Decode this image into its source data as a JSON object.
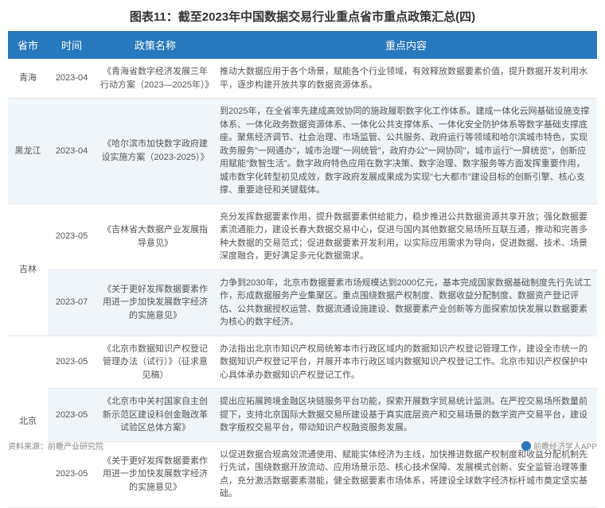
{
  "title": "图表11：截至2023年中国数据交易行业重点省市重点政策汇总(四)",
  "header": {
    "province": "省市",
    "time": "时间",
    "policy": "政策名称",
    "content": "重点内容"
  },
  "rows": [
    {
      "province": "青海",
      "time": "2023-04",
      "policy": "《青海省数字经济发展三年行动方案（2023—2025年）》",
      "content": "推动大数据应用于各个场景，赋能各个行业领域，有效释放数据要素价值，提升数据开发利用水平，逐步构建开放共享的数据资源体系。",
      "alt": false
    },
    {
      "province": "黑龙江",
      "time": "2023-04",
      "policy": "《哈尔滨市加快数字政府建设实施方案（2023-2025）》",
      "content": "到2025年，在全省率先建成高效协同的施政履职数字化工作体系。建成一体化云网基础设施支撑体系、一体化政务数据资源体系、一体化公共支撑体系、一体化安全防护体系等数字基础支撑底座。聚焦经济调节、社会治理、市场监管、公共服务、政府运行等领域和哈尔滨城市特色，实现政务服务\"一网通办\"，城市治理\"一网统管\"，政府办公\"一网协同\"，城市运行\"一屏统览\"，创新应用赋能\"数智生活\"。数字政府特色应用在数字决策、数字治理、数字服务等方面发挥重要作用，城市数字化转型初见成效，数字政府发展成果成为实现\"七大都市\"建设目标的创新引擎、核心支撑、重要途径和关键载体。",
      "alt": true
    },
    {
      "province": "吉林",
      "time": "2023-05",
      "policy": "《吉林省大数据产业发展指导意见》",
      "content": "充分发挥数据要素作用，提升数据要素供给能力，稳步推进公共数据资源共享开放；强化数据要素流通能力，建设长春大数据交易中心，促进与国内其他数据交易场所互联互通，推动和完善多种大数据的交易范式；促进数据要素开发利用，以实际应用需求为导向，促进数据、技术、场景深度融合，更好满足多元化数据需求。",
      "alt": false
    },
    {
      "province": "",
      "time": "2023-07",
      "policy": "《关于更好发挥数据要素作用进一步加快发展数字经济的实施意见》",
      "content": "力争到2030年，北京市数据要素市场规模达到2000亿元，基本完成国家数据基础制度先行先试工作，形成数据服务产业集聚区。重点围绕数据产权制度、数据收益分配制度、数据资产登记评估、公共数据授权运营、数据流通设施建设、数据要素产业创新等方面探索加快发展以数据要素为核心的数字经济。",
      "alt": true
    },
    {
      "province": "北京",
      "time": "2023-05",
      "policy": "《北京市数据知识产权登记管理办法（试行）》（征求意见稿）",
      "content": "办法指出北京市知识产权局统筹本市行政区域内的数据知识产权登记管理工作，建设全市统一的数据知识产权登记平台，并展开本市行政区域内数据知识产权登记工作。北京市知识产权保护中心具体承办数据知识产权登记工作。",
      "alt": false
    },
    {
      "province": "",
      "time": "2023-05",
      "policy": "《北京市中关村国家自主创新示范区建设科创金融改革试验区总体方案》",
      "content": "提出应拓展跨境金融区块链服务平台功能，探索开展数字贸易统计监测。在严控交易场所数量前提下，支持北京国际大数据交易所建设基于真实底层资产和交易场景的数字资产交易平台，建设数字版权交易平台，带动知识产权融资服务发展。",
      "alt": true
    },
    {
      "province": "",
      "time": "2023-05",
      "policy": "《关于更好发挥数据要素作用进一步加快发展数字经济的实施意见》",
      "content": "以促进数据合规高效流通使用、赋能实体经济为主线，加快推进数据产权制度和收益分配机制先行先试，围绕数据开放流动、应用场景示范、核心技术保障、发展模式创新、安全监管治理等重点，充分激活数据要素潜能，健全数据要素市场体系，将建设全球数字经济标杆城市奠定坚实基础。",
      "alt": false
    }
  ],
  "footer": {
    "source": "资料来源：前瞻产业研究院",
    "credit": "前瞻经济学人APP"
  },
  "colors": {
    "header_bg": "#2878bd",
    "header_text": "#ffffff",
    "alt_bg": "#f0f5fa",
    "border": "#e8e8e8",
    "text": "#555555",
    "title": "#333333"
  }
}
